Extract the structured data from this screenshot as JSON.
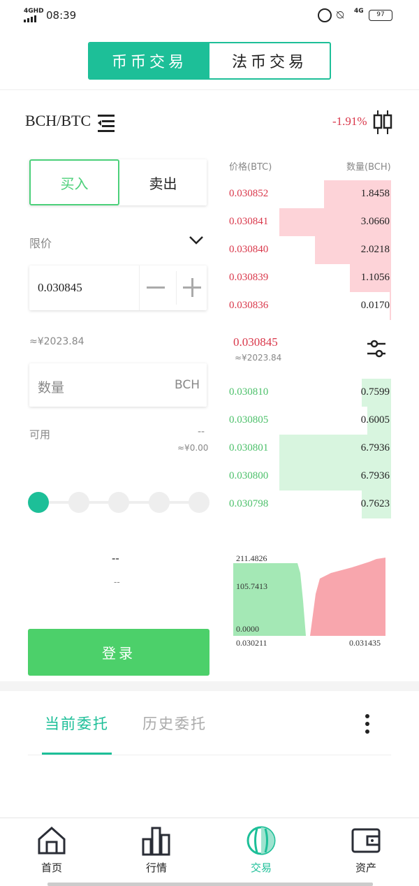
{
  "status": {
    "network": "4GHD",
    "time": "08:39",
    "signal2": "4G",
    "battery": "97"
  },
  "tabs": [
    {
      "label": "币币交易",
      "active": true
    },
    {
      "label": "法币交易",
      "active": false
    }
  ],
  "pair": {
    "name": "BCH/BTC",
    "change": "-1.91%"
  },
  "order": {
    "buy_label": "买入",
    "sell_label": "卖出",
    "type_label": "限价",
    "price_value": "0.030845",
    "price_cny": "≈¥2023.84",
    "qty_placeholder": "数量",
    "qty_unit": "BCH",
    "avail_label": "可用",
    "avail_value": "--",
    "avail_cny": "≈¥0.00",
    "total_value": "--",
    "total_cny": "--",
    "login_label": "登录",
    "slider_level": 0
  },
  "book": {
    "price_header": "价格(BTC)",
    "qty_header": "数量(BCH)",
    "asks": [
      {
        "price": "0.030852",
        "qty": "1.8458",
        "depth": 0.6
      },
      {
        "price": "0.030841",
        "qty": "3.0660",
        "depth": 1.0
      },
      {
        "price": "0.030840",
        "qty": "2.0218",
        "depth": 0.68
      },
      {
        "price": "0.030839",
        "qty": "1.1056",
        "depth": 0.37
      },
      {
        "price": "0.030836",
        "qty": "0.0170",
        "depth": 0.01
      }
    ],
    "last_price": "0.030845",
    "last_cny": "≈¥2023.84",
    "bids": [
      {
        "price": "0.030810",
        "qty": "0.7599",
        "depth": 0.26
      },
      {
        "price": "0.030805",
        "qty": "0.6005",
        "depth": 0.21
      },
      {
        "price": "0.030801",
        "qty": "6.7936",
        "depth": 1.0
      },
      {
        "price": "0.030800",
        "qty": "6.7936",
        "depth": 1.0
      },
      {
        "price": "0.030798",
        "qty": "0.7623",
        "depth": 0.26
      }
    ]
  },
  "depth": {
    "y_max": "211.4826",
    "y_mid": "105.7413",
    "y_min": "0.0000",
    "x_min": "0.030211",
    "x_max": "0.031435",
    "bid_color": "#a4e8b5",
    "ask_color": "#f8a6ad"
  },
  "orders_tabs": [
    {
      "label": "当前委托",
      "active": true
    },
    {
      "label": "历史委托",
      "active": false
    }
  ],
  "nav": [
    {
      "label": "首页",
      "icon": "home-icon"
    },
    {
      "label": "行情",
      "icon": "chart-icon"
    },
    {
      "label": "交易",
      "icon": "trade-icon",
      "active": true
    },
    {
      "label": "资产",
      "icon": "wallet-icon"
    }
  ],
  "colors": {
    "accent": "#1dbf98",
    "buy": "#4cd07a",
    "sell": "#d9374a"
  }
}
